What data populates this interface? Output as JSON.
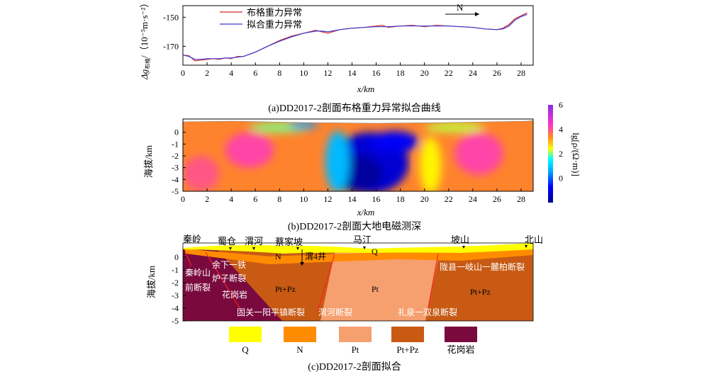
{
  "panel_a": {
    "caption": "(a)DD2017-2剖面布格重力异常拟合曲线",
    "xlabel": "x/km",
    "ylabel_prefix": "Δg",
    "ylabel_sub": "布格",
    "ylabel_units": "/（10⁻⁵m·s⁻²）",
    "direction": "N",
    "legend": [
      "布格重力异常",
      "拟合重力异常"
    ]
  },
  "panel_b": {
    "caption": "(b)DD2017-2剖面大地电磁测深",
    "xlabel": "x/km",
    "ylabel": "海拔/km",
    "colorbar_label": "lg[ρ/(Ω·m)]",
    "colorbar_ticks": [
      "6",
      "4",
      "2",
      "0"
    ]
  },
  "panel_c": {
    "caption": "(c)DD2017-2剖面拟合",
    "ylabel": "海拔/km",
    "y_ticks": [
      "0",
      "-1",
      "-2",
      "-3",
      "-4",
      "-5"
    ],
    "places": [
      "秦岭",
      "蜀仓",
      "渭河",
      "蔡家坡",
      "马江",
      "坡山",
      "北山"
    ],
    "well": "渭4井",
    "unit_labels": {
      "n": "N",
      "q": "Q",
      "ptpz_left": "Pt+Pz",
      "pt": "Pt",
      "ptpz_right": "Pt+Pz",
      "granite": "花岗岩"
    },
    "fault_labels": [
      "秦岭山",
      "前断裂",
      "余下一铁",
      "炉子断裂",
      "固关一阳平镇断裂",
      "渭河断裂",
      "礼泉一双泉断裂",
      "陇县一岐山一麓柏断裂"
    ],
    "legend": [
      {
        "label": "Q",
        "color": "#ffff00"
      },
      {
        "label": "N",
        "color": "#ff8c00"
      },
      {
        "label": "Pt",
        "color": "#f6a070"
      },
      {
        "label": "Pt+Pz",
        "color": "#c85a14"
      },
      {
        "label": "花岗岩",
        "color": "#7a0a3e"
      }
    ]
  },
  "chart_data": [
    {
      "type": "line",
      "xlabel": "x/km",
      "ylabel": "Δg布格/（10⁻⁵m·s⁻²）",
      "xlim": [
        0,
        29
      ],
      "ylim": [
        -183,
        -142
      ],
      "x_ticks": [
        0,
        2,
        4,
        6,
        8,
        10,
        12,
        14,
        16,
        18,
        20,
        22,
        24,
        26,
        28
      ],
      "y_ticks": [
        -150,
        -170
      ],
      "series": [
        {
          "name": "布格重力异常",
          "color": "#d62728",
          "x": [
            0,
            0.5,
            1,
            1.5,
            2,
            2.5,
            3,
            3.5,
            4,
            4.5,
            5,
            6,
            7,
            8,
            9,
            10,
            11,
            11.5,
            12,
            13,
            14,
            15,
            16,
            16.5,
            17,
            18,
            19,
            20,
            21,
            22,
            23,
            24,
            25,
            26,
            26.5,
            27,
            27.5,
            28,
            28.5
          ],
          "y": [
            -176,
            -176.5,
            -180,
            -179.5,
            -179,
            -178.5,
            -179,
            -178,
            -178.5,
            -177,
            -177,
            -174,
            -170,
            -166,
            -163,
            -161,
            -159,
            -160,
            -161,
            -158.5,
            -157.5,
            -157,
            -156,
            -155.5,
            -157,
            -156,
            -155.5,
            -156.5,
            -155.5,
            -156,
            -156.5,
            -157,
            -158,
            -158.5,
            -157.5,
            -155,
            -151,
            -149,
            -147
          ]
        },
        {
          "name": "拟合重力异常",
          "color": "#3b3bd0",
          "x": [
            0,
            0.5,
            1,
            1.5,
            2,
            2.5,
            3,
            3.5,
            4,
            4.5,
            5,
            6,
            7,
            8,
            9,
            10,
            11,
            11.5,
            12,
            13,
            14,
            15,
            16,
            16.5,
            17,
            18,
            19,
            20,
            21,
            22,
            23,
            24,
            25,
            26,
            26.5,
            27,
            27.5,
            28,
            28.5
          ],
          "y": [
            -176,
            -177,
            -179,
            -179,
            -178.5,
            -178.5,
            -178.5,
            -178,
            -178,
            -177.5,
            -177,
            -174,
            -170,
            -166.5,
            -163.5,
            -161,
            -159.5,
            -159.5,
            -160,
            -158.5,
            -157.5,
            -157,
            -156.5,
            -156.5,
            -156.5,
            -156,
            -156,
            -156,
            -156,
            -156,
            -156.5,
            -157,
            -158,
            -158.5,
            -158,
            -156,
            -152,
            -149.5,
            -148
          ]
        }
      ]
    },
    {
      "type": "heatmap",
      "xlabel": "x/km",
      "ylabel": "海拔/km",
      "xlim": [
        0,
        29
      ],
      "ylim": [
        -5,
        1
      ],
      "x_ticks": [
        0,
        2,
        4,
        6,
        8,
        10,
        12,
        14,
        16,
        18,
        20,
        22,
        24,
        26,
        28
      ],
      "y_ticks": [
        0,
        -1,
        -2,
        -3,
        -4,
        -5
      ],
      "colorbar_label": "lg[ρ/(Ω·m)]",
      "colorbar_range": [
        -2,
        6
      ],
      "colorbar_ticks": [
        6,
        4,
        2,
        0
      ],
      "background_value": 3.5,
      "anomalies": [
        {
          "x": 15.5,
          "y": -2.6,
          "rx": 3.2,
          "ry": 2.6,
          "value": -1.2
        },
        {
          "x": 14.5,
          "y": -3.5,
          "rx": 2.0,
          "ry": 1.6,
          "value": -1.8
        },
        {
          "x": 17.5,
          "y": -0.8,
          "rx": 2.0,
          "ry": 0.9,
          "value": -0.8
        },
        {
          "x": 12.8,
          "y": -2.5,
          "rx": 1.0,
          "ry": 2.6,
          "value": 0.8
        },
        {
          "x": 20.5,
          "y": -2.8,
          "rx": 0.9,
          "ry": 2.4,
          "value": 2.5
        },
        {
          "x": 8.0,
          "y": 0.4,
          "rx": 2.5,
          "ry": 0.4,
          "value": 2.0
        },
        {
          "x": 22.5,
          "y": 0.4,
          "rx": 2.5,
          "ry": 0.4,
          "value": 2.2
        },
        {
          "x": 5.5,
          "y": -1.5,
          "rx": 2.0,
          "ry": 1.5,
          "value": 4.2
        },
        {
          "x": 24.5,
          "y": -1.8,
          "rx": 2.0,
          "ry": 1.8,
          "value": 4.2
        },
        {
          "x": 1.5,
          "y": -3.5,
          "rx": 1.5,
          "ry": 1.5,
          "value": 4.0
        },
        {
          "x": 10.0,
          "y": 0.6,
          "rx": 1.2,
          "ry": 0.3,
          "value": 0.5
        }
      ]
    }
  ]
}
